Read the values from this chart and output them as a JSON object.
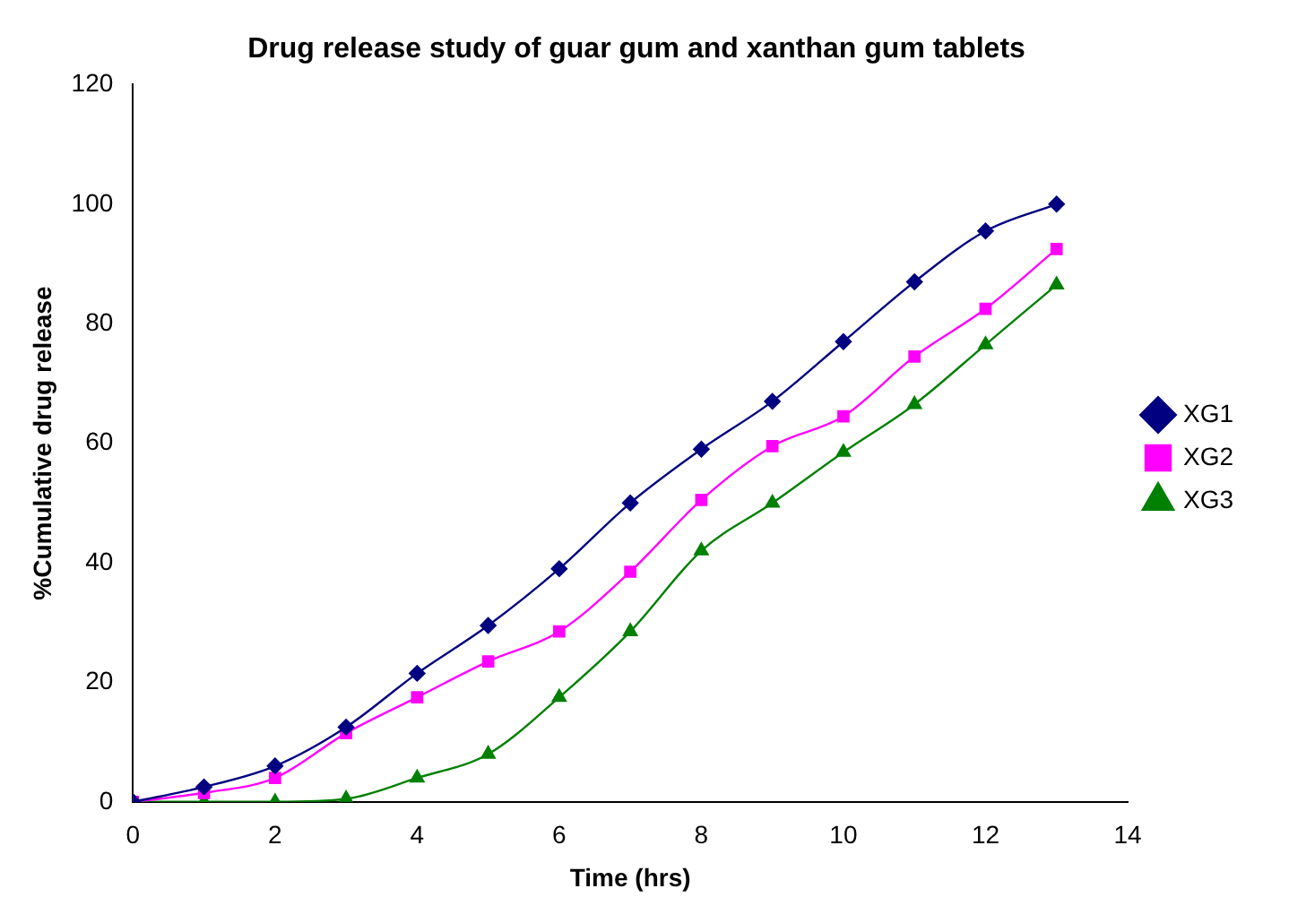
{
  "chart_data": {
    "type": "line",
    "title": "Drug release study of guar gum and xanthan gum tablets",
    "xlabel": "Time (hrs)",
    "ylabel": "%Cumulative drug release",
    "x": [
      0,
      1,
      2,
      3,
      4,
      5,
      6,
      7,
      8,
      9,
      10,
      11,
      12,
      13
    ],
    "series": [
      {
        "name": "XG1",
        "color": "#000080",
        "marker": "diamond",
        "values": [
          0,
          2.5,
          6,
          12.5,
          21.5,
          29.5,
          39,
          50,
          59,
          67,
          77,
          87,
          95.5,
          100
        ]
      },
      {
        "name": "XG2",
        "color": "#ff00ff",
        "marker": "square",
        "values": [
          0,
          1.5,
          4,
          11.5,
          17.5,
          23.5,
          28.5,
          38.5,
          50.5,
          59.5,
          64.5,
          74.5,
          82.5,
          92.5
        ]
      },
      {
        "name": "XG3",
        "color": "#008000",
        "marker": "triangle",
        "values": [
          0,
          0,
          0,
          0.5,
          4,
          8,
          17.5,
          28.5,
          42,
          50,
          58.5,
          66.5,
          76.5,
          86.5
        ]
      }
    ],
    "xlim": [
      0,
      14
    ],
    "xticks": [
      0,
      2,
      4,
      6,
      8,
      10,
      12,
      14
    ],
    "ylim": [
      0,
      120
    ],
    "yticks": [
      0,
      20,
      40,
      60,
      80,
      100,
      120
    ],
    "grid": false,
    "legend": "right"
  }
}
